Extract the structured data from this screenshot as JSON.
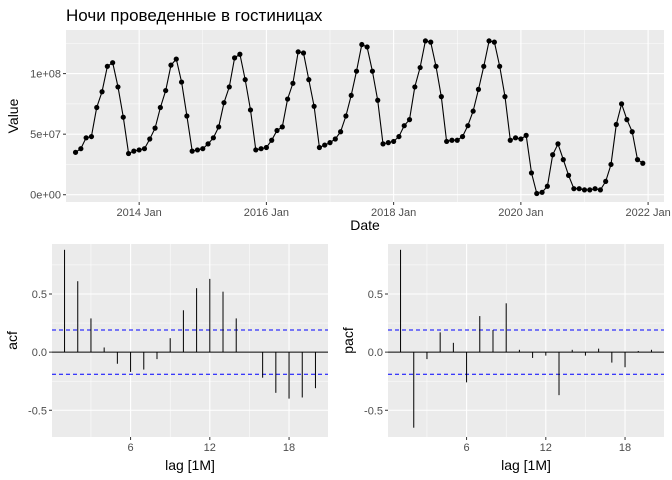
{
  "colors": {
    "panel": "#ebebeb",
    "grid_major": "#ffffff",
    "line": "#000000",
    "ci": "#0000ff"
  },
  "chart_data": [
    {
      "type": "line",
      "title": "Ночи проведенные в гостиницах",
      "xlabel": "Date",
      "ylabel": "Value",
      "xlim": [
        2012.85,
        2022.25
      ],
      "ylim": [
        -6000000,
        136000000
      ],
      "x_ticks": [
        {
          "value": 2014.0,
          "label": "2014 Jan"
        },
        {
          "value": 2016.0,
          "label": "2016 Jan"
        },
        {
          "value": 2018.0,
          "label": "2018 Jan"
        },
        {
          "value": 2020.0,
          "label": "2020 Jan"
        },
        {
          "value": 2022.0,
          "label": "2022 Jan"
        }
      ],
      "y_ticks": [
        {
          "value": 0,
          "label": "0e+00"
        },
        {
          "value": 50000000,
          "label": "5e+07"
        },
        {
          "value": 100000000,
          "label": "1e+08"
        }
      ],
      "start": {
        "year": 2013,
        "month": 1
      },
      "values": [
        35000000,
        38000000,
        47000000,
        48000000,
        72000000,
        85000000,
        106000000,
        109000000,
        89000000,
        64000000,
        34000000,
        36000000,
        37000000,
        38000000,
        46000000,
        55000000,
        72000000,
        86000000,
        107000000,
        112000000,
        93000000,
        65000000,
        36000000,
        37000000,
        38000000,
        42000000,
        47000000,
        56000000,
        76000000,
        89000000,
        113000000,
        116000000,
        95000000,
        70000000,
        37000000,
        38000000,
        39000000,
        45000000,
        53000000,
        56000000,
        79000000,
        92000000,
        118000000,
        117000000,
        95000000,
        73000000,
        39000000,
        41000000,
        43000000,
        46000000,
        52000000,
        65000000,
        82000000,
        102000000,
        124000000,
        122000000,
        102000000,
        78000000,
        42000000,
        43000000,
        44000000,
        48000000,
        57000000,
        62000000,
        89000000,
        105000000,
        127000000,
        126000000,
        106000000,
        81000000,
        44000000,
        45000000,
        45000000,
        48000000,
        57000000,
        69000000,
        87000000,
        106000000,
        127000000,
        126000000,
        106000000,
        81000000,
        45000000,
        47000000,
        46000000,
        49000000,
        18000000,
        1000000,
        2000000,
        7000000,
        33000000,
        42000000,
        29000000,
        16000000,
        5000000,
        5000000,
        4000000,
        4000000,
        5000000,
        4000000,
        11000000,
        25000000,
        58000000,
        75000000,
        62000000,
        52000000,
        29000000,
        26000000
      ]
    },
    {
      "type": "bar",
      "xlabel": "lag [1M]",
      "ylabel": "acf",
      "xlim": [
        0.05,
        20.95
      ],
      "ylim": [
        -0.73,
        0.93
      ],
      "x_ticks": [
        6,
        12,
        18
      ],
      "y_ticks": [
        {
          "value": -0.5,
          "label": "-0.5"
        },
        {
          "value": 0.0,
          "label": "0.0"
        },
        {
          "value": 0.5,
          "label": "0.5"
        }
      ],
      "ci": 0.19,
      "lags": [
        1,
        2,
        3,
        4,
        5,
        6,
        7,
        8,
        9,
        10,
        11,
        12,
        13,
        14,
        15,
        16,
        17,
        18,
        19,
        20
      ],
      "values": [
        0.88,
        0.61,
        0.29,
        0.04,
        -0.1,
        -0.17,
        -0.15,
        -0.06,
        0.12,
        0.36,
        0.55,
        0.63,
        0.52,
        0.29,
        0.0,
        -0.22,
        -0.35,
        -0.4,
        -0.39,
        -0.31
      ]
    },
    {
      "type": "bar",
      "xlabel": "lag [1M]",
      "ylabel": "pacf",
      "xlim": [
        0.05,
        20.95
      ],
      "ylim": [
        -0.73,
        0.93
      ],
      "x_ticks": [
        6,
        12,
        18
      ],
      "y_ticks": [
        {
          "value": -0.5,
          "label": "-0.5"
        },
        {
          "value": 0.0,
          "label": "0.0"
        },
        {
          "value": 0.5,
          "label": "0.5"
        }
      ],
      "ci": 0.19,
      "lags": [
        1,
        2,
        3,
        4,
        5,
        6,
        7,
        8,
        9,
        10,
        11,
        12,
        13,
        14,
        15,
        16,
        17,
        18,
        19,
        20
      ],
      "values": [
        0.88,
        -0.65,
        -0.06,
        0.17,
        0.08,
        -0.26,
        0.31,
        0.19,
        0.42,
        0.02,
        -0.05,
        -0.03,
        -0.37,
        0.02,
        -0.03,
        0.03,
        -0.09,
        -0.13,
        0.01,
        0.02
      ]
    }
  ]
}
